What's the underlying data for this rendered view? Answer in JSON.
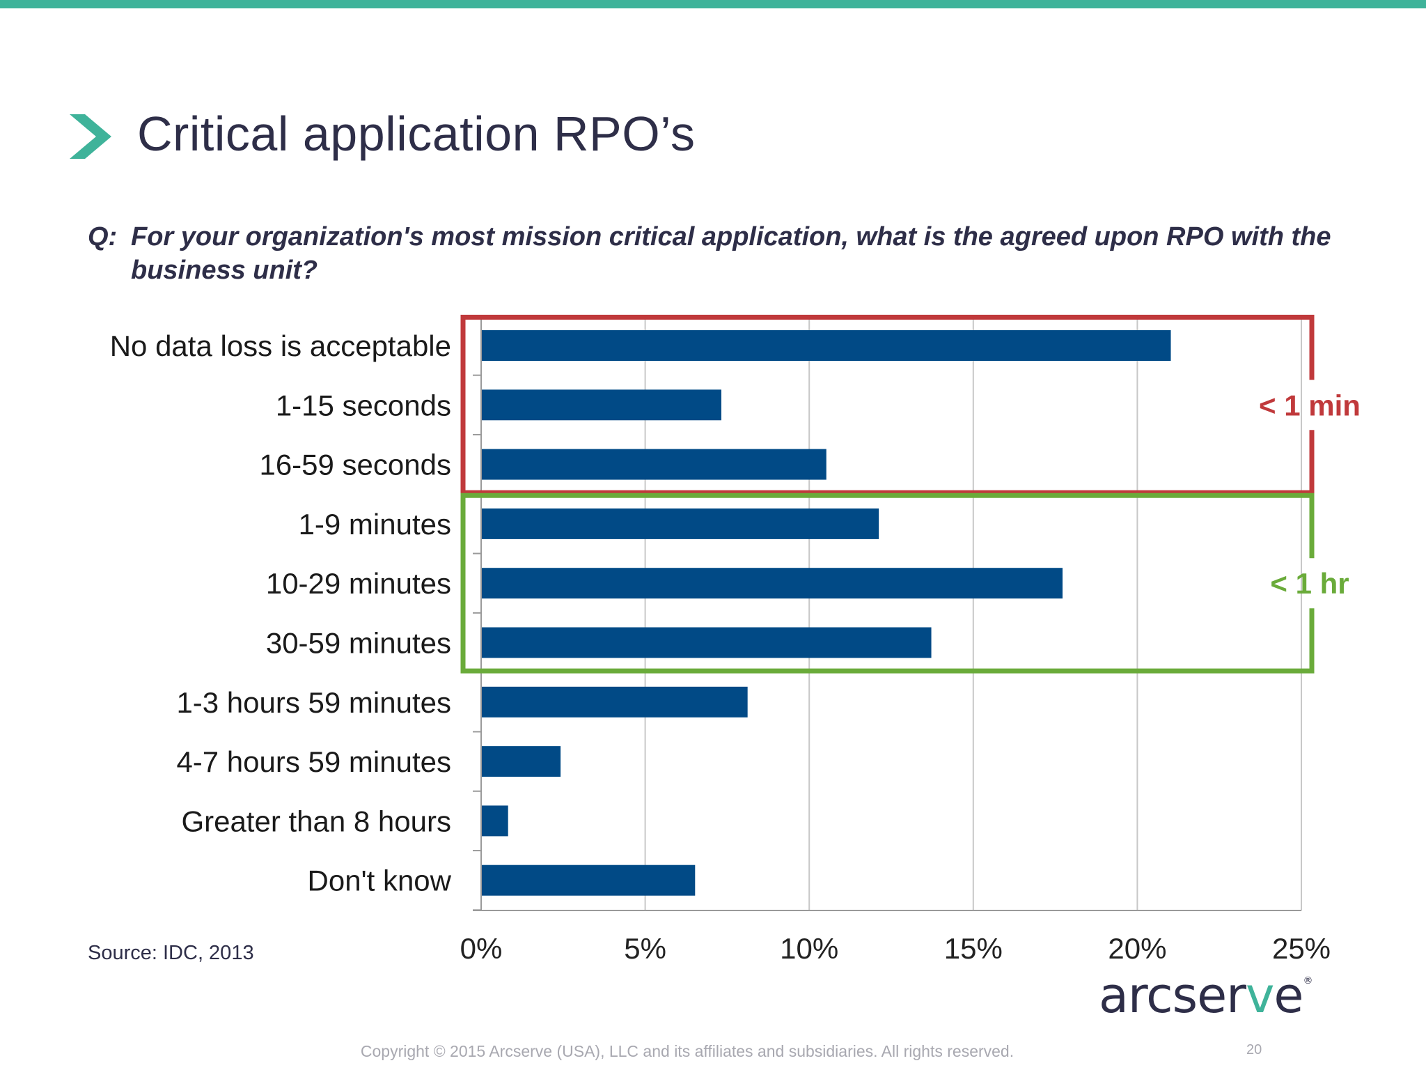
{
  "slide": {
    "title": "Critical application RPO’s",
    "question_prefix": "Q:",
    "question_text": "For your organization's most mission critical application, what is the agreed upon RPO with the business unit?",
    "source": "Source:  IDC, 2013",
    "logo": {
      "main": "arcser",
      "accent": "v",
      "tail": "e",
      "registered": "®"
    },
    "copyright": "Copyright © 2015 Arcserve (USA), LLC and its affiliates and subsidiaries. All rights reserved.",
    "page_number": "20",
    "accent_color": "#3fb39a",
    "title_color": "#2e2e48"
  },
  "chart_data": {
    "type": "bar",
    "orientation": "horizontal",
    "categories": [
      "No data loss is acceptable",
      "1-15 seconds",
      "16-59 seconds",
      "1-9 minutes",
      "10-29 minutes",
      "30-59 minutes",
      "1-3 hours 59 minutes",
      "4-7 hours 59 minutes",
      "Greater than 8 hours",
      "Don't know"
    ],
    "values": [
      21.0,
      7.3,
      10.5,
      12.1,
      17.7,
      13.7,
      8.1,
      2.4,
      0.8,
      6.5
    ],
    "xlim": [
      0,
      25
    ],
    "xticks": [
      0,
      5,
      10,
      15,
      20,
      25
    ],
    "xtick_labels": [
      "0%",
      "5%",
      "10%",
      "15%",
      "20%",
      "25%"
    ],
    "grid": "vertical",
    "bar_color": "#014a86",
    "groups": [
      {
        "label": "< 1 min",
        "color": "#c0393b",
        "from": 0,
        "to": 2
      },
      {
        "label": "< 1 hr",
        "color": "#6aab3a",
        "from": 3,
        "to": 5
      }
    ]
  }
}
